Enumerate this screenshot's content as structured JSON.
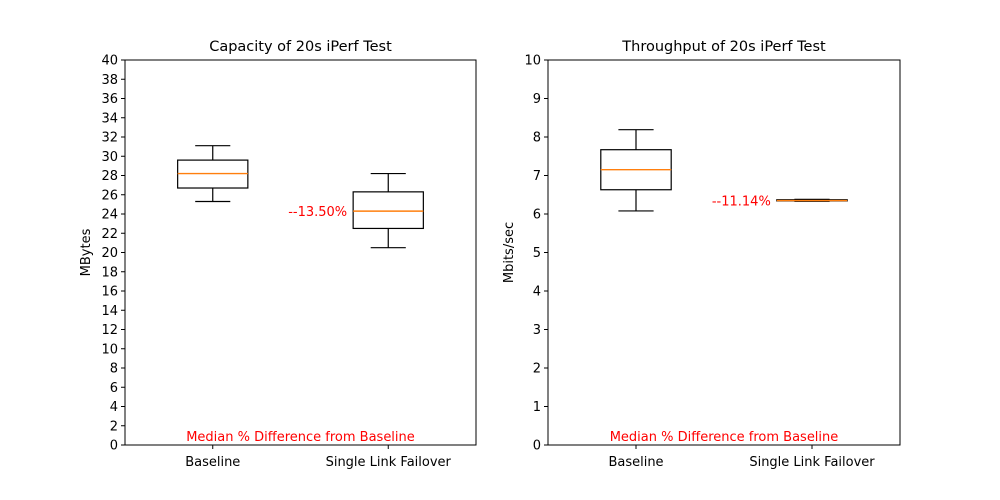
{
  "chart_data": [
    {
      "type": "box",
      "title": "Capacity of 20s iPerf Test",
      "xlabel": "",
      "ylabel": "MBytes",
      "categories": [
        "Baseline",
        "Single Link Failover"
      ],
      "ylim": [
        0,
        40
      ],
      "yticks": [
        0,
        2,
        4,
        6,
        8,
        10,
        12,
        14,
        16,
        18,
        20,
        22,
        24,
        26,
        28,
        30,
        32,
        34,
        36,
        38,
        40
      ],
      "boxes": [
        {
          "category": "Baseline",
          "whislo": 25.3,
          "q1": 26.7,
          "med": 28.2,
          "q3": 29.6,
          "whishi": 31.1
        },
        {
          "category": "Single Link Failover",
          "whislo": 20.5,
          "q1": 22.5,
          "med": 24.3,
          "q3": 26.3,
          "whishi": 28.2
        }
      ],
      "median_diff_label": "--13.50%",
      "footer_label": "Median % Difference from Baseline",
      "grid": false
    },
    {
      "type": "box",
      "title": "Throughput of 20s iPerf Test",
      "xlabel": "",
      "ylabel": "Mbits/sec",
      "categories": [
        "Baseline",
        "Single Link Failover"
      ],
      "ylim": [
        0,
        10
      ],
      "yticks": [
        0,
        1,
        2,
        3,
        4,
        5,
        6,
        7,
        8,
        9,
        10
      ],
      "boxes": [
        {
          "category": "Baseline",
          "whislo": 6.08,
          "q1": 6.63,
          "med": 7.15,
          "q3": 7.67,
          "whishi": 8.19
        },
        {
          "category": "Single Link Failover",
          "whislo": 6.33,
          "q1": 6.34,
          "med": 6.35,
          "q3": 6.37,
          "whishi": 6.38
        }
      ],
      "median_diff_label": "--11.14%",
      "footer_label": "Median % Difference from Baseline",
      "grid": false
    }
  ],
  "colors": {
    "box": "#000000",
    "median": "#ff7f0e",
    "annotation": "#ff0000"
  }
}
